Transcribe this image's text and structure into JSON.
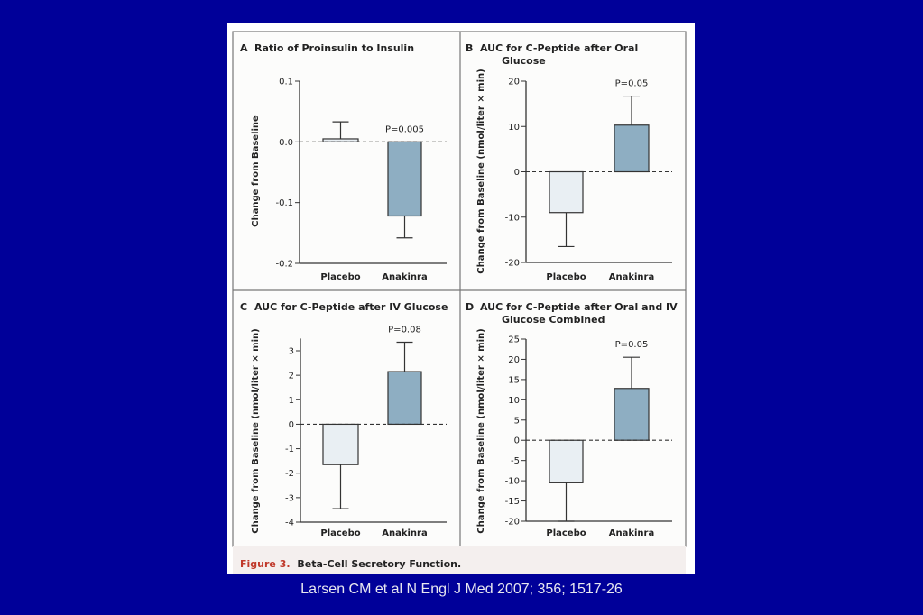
{
  "figure": {
    "label": "Figure 3.",
    "title": "Beta-Cell Secretory Function.",
    "label_color": "#c0392b"
  },
  "citation": "Larsen CM et al N Engl J Med 2007; 356; 1517-26",
  "colors": {
    "background": "#000099",
    "placebo": "#e9eff3",
    "anakinra": "#8eaec2"
  },
  "chart_data": [
    {
      "type": "bar",
      "panel": "A",
      "title": [
        "Ratio of Proinsulin to Insulin"
      ],
      "ylabel": "Change from Baseline",
      "categories": [
        "Placebo",
        "Anakinra"
      ],
      "values": [
        0.005,
        -0.122
      ],
      "error_end": [
        0.033,
        -0.158
      ],
      "ylim": [
        -0.2,
        0.1
      ],
      "ticks": [
        "0.1",
        "0.0",
        "-0.1",
        "-0.2"
      ],
      "tick_values": [
        0.1,
        0.0,
        -0.1,
        -0.2
      ],
      "p_value": "P=0.005",
      "grid": false
    },
    {
      "type": "bar",
      "panel": "B",
      "title": [
        "AUC for C-Peptide after Oral",
        "Glucose"
      ],
      "ylabel": "Change from Baseline (nmol/liter × min)",
      "categories": [
        "Placebo",
        "Anakinra"
      ],
      "values": [
        -9,
        10.3
      ],
      "error_end": [
        -16.5,
        16.7
      ],
      "ylim": [
        -20,
        20
      ],
      "ticks": [
        "20",
        "10",
        "0",
        "-10",
        "-20"
      ],
      "tick_values": [
        20,
        10,
        0,
        -10,
        -20
      ],
      "p_value": "P=0.05",
      "grid": false
    },
    {
      "type": "bar",
      "panel": "C",
      "title": [
        "AUC for C-Peptide after IV Glucose"
      ],
      "ylabel": "Change from Baseline (nmol/liter × min)",
      "categories": [
        "Placebo",
        "Anakinra"
      ],
      "values": [
        -1.65,
        2.15
      ],
      "error_end": [
        -3.45,
        3.35
      ],
      "ylim": [
        -4,
        3.5
      ],
      "ticks": [
        "3",
        "2",
        "1",
        "0",
        "-1",
        "-2",
        "-3",
        "-4"
      ],
      "tick_values": [
        3,
        2,
        1,
        0,
        -1,
        -2,
        -3,
        -4
      ],
      "p_value": "P=0.08",
      "grid": false
    },
    {
      "type": "bar",
      "panel": "D",
      "title": [
        "AUC for C-Peptide after Oral and IV",
        "Glucose Combined"
      ],
      "ylabel": "Change from Baseline (nmol/liter × min)",
      "categories": [
        "Placebo",
        "Anakinra"
      ],
      "values": [
        -10.5,
        12.8
      ],
      "error_end": [
        -20,
        20.5
      ],
      "ylim": [
        -20,
        25
      ],
      "ticks": [
        "25",
        "20",
        "15",
        "10",
        "5",
        "0",
        "-5",
        "-10",
        "-15",
        "-20"
      ],
      "tick_values": [
        25,
        20,
        15,
        10,
        5,
        0,
        -5,
        -10,
        -15,
        -20
      ],
      "p_value": "P=0.05",
      "grid": false
    }
  ]
}
